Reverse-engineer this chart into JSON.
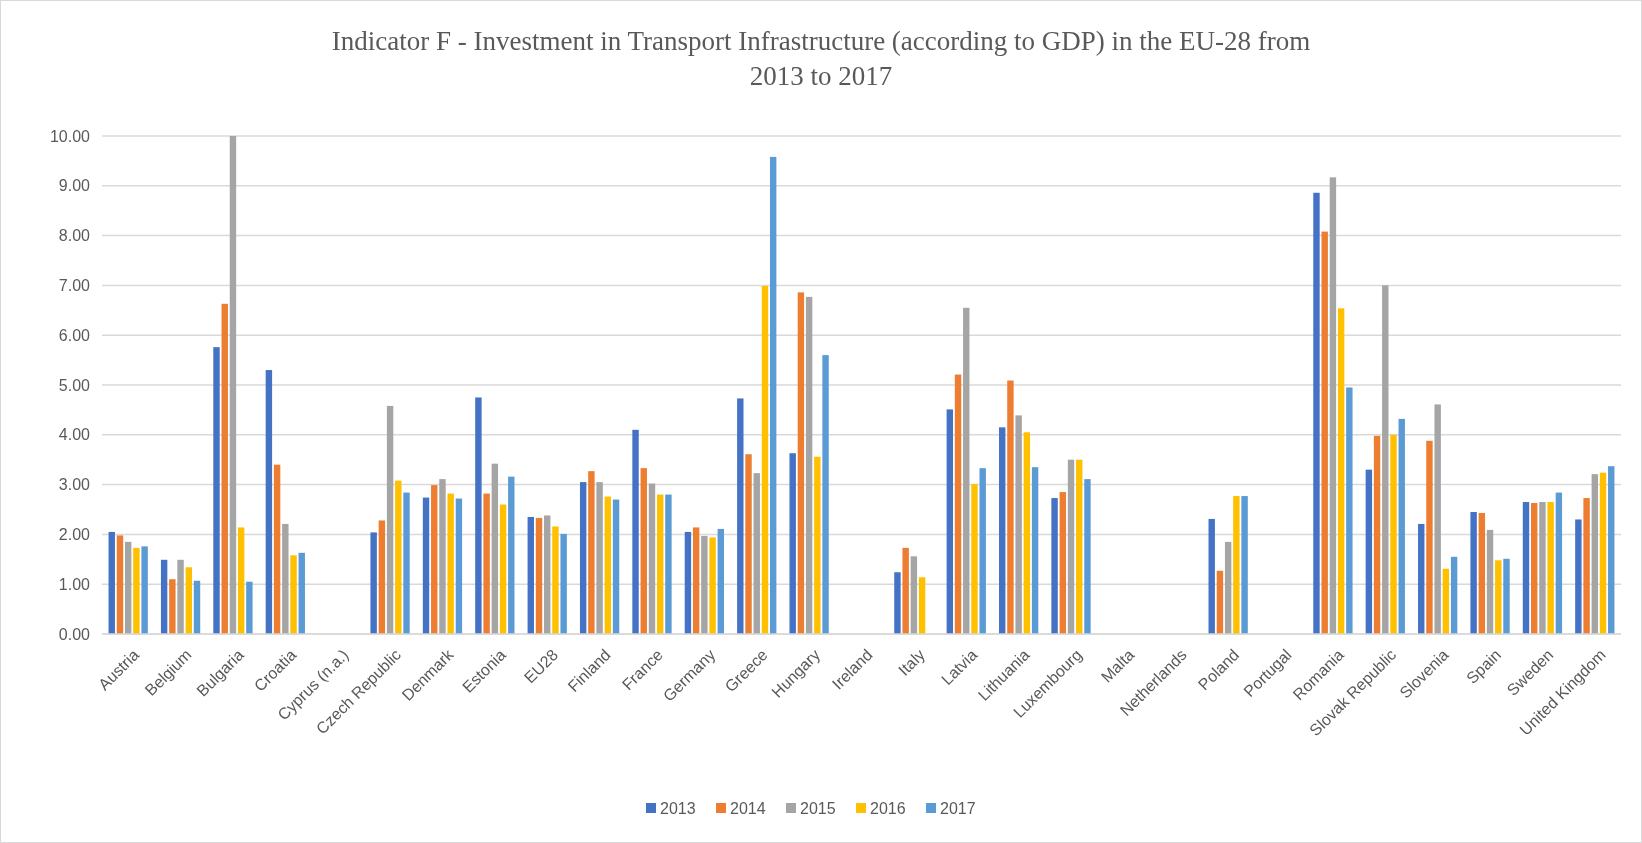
{
  "chart_data": {
    "type": "bar",
    "title": "Indicator F - Investment in Transport Infrastructure (according to GDP) in the EU-28 from 2013 to 2017",
    "categories": [
      "Austria",
      "Belgium",
      "Bulgaria",
      "Croatia",
      "Cyprus (n.a.)",
      "Czech Republic",
      "Denmark",
      "Estonia",
      "EU28",
      "Finland",
      "France",
      "Germany",
      "Greece",
      "Hungary",
      "Ireland",
      "Italy",
      "Latvia",
      "Lithuania",
      "Luxembourg",
      "Malta",
      "Netherlands",
      "Poland",
      "Portugal",
      "Romania",
      "Slovak Republic",
      "Slovenia",
      "Spain",
      "Sweden",
      "United Kingdom"
    ],
    "series": [
      {
        "name": "2013",
        "color": "#4472c4",
        "values": [
          2.05,
          1.49,
          5.76,
          5.3,
          null,
          2.04,
          2.74,
          4.75,
          2.35,
          3.05,
          4.1,
          2.05,
          4.73,
          3.63,
          null,
          1.24,
          4.51,
          4.15,
          2.73,
          null,
          null,
          2.31,
          null,
          8.86,
          3.3,
          2.21,
          2.45,
          2.65,
          2.3
        ]
      },
      {
        "name": "2014",
        "color": "#ed7d31",
        "values": [
          1.98,
          1.1,
          6.63,
          3.4,
          null,
          2.28,
          2.99,
          2.82,
          2.33,
          3.27,
          3.33,
          2.14,
          3.61,
          6.86,
          null,
          1.73,
          5.21,
          5.09,
          2.85,
          null,
          null,
          1.27,
          null,
          8.08,
          3.98,
          3.88,
          2.43,
          2.63,
          2.73
        ]
      },
      {
        "name": "2015",
        "color": "#a5a5a5",
        "values": [
          1.85,
          1.49,
          10.0,
          2.21,
          null,
          4.58,
          3.11,
          3.42,
          2.38,
          3.05,
          3.02,
          1.97,
          3.23,
          6.77,
          null,
          1.56,
          6.55,
          4.39,
          3.5,
          null,
          null,
          1.85,
          null,
          9.17,
          7.0,
          4.61,
          2.09,
          2.65,
          3.21
        ]
      },
      {
        "name": "2016",
        "color": "#ffc000",
        "values": [
          1.73,
          1.34,
          2.14,
          1.58,
          null,
          3.08,
          2.82,
          2.6,
          2.16,
          2.76,
          2.8,
          1.94,
          6.99,
          3.56,
          null,
          1.14,
          3.01,
          4.05,
          3.5,
          null,
          null,
          2.77,
          null,
          6.54,
          4.0,
          1.31,
          1.48,
          2.65,
          3.24
        ]
      },
      {
        "name": "2017",
        "color": "#5b9bd5",
        "values": [
          1.76,
          1.07,
          1.05,
          1.63,
          null,
          2.84,
          2.72,
          3.16,
          2.01,
          2.7,
          2.8,
          2.11,
          9.58,
          5.6,
          null,
          null,
          3.33,
          3.35,
          3.11,
          null,
          null,
          2.77,
          null,
          4.95,
          4.32,
          1.55,
          1.51,
          2.84,
          3.37
        ]
      }
    ],
    "ylim": [
      0,
      10
    ],
    "yticks": [
      {
        "value": 0,
        "label": "0.00"
      },
      {
        "value": 1,
        "label": "1.00"
      },
      {
        "value": 2,
        "label": "2.00"
      },
      {
        "value": 3,
        "label": "3.00"
      },
      {
        "value": 4,
        "label": "4.00"
      },
      {
        "value": 5,
        "label": "5.00"
      },
      {
        "value": 6,
        "label": "6.00"
      },
      {
        "value": 7,
        "label": "7.00"
      },
      {
        "value": 8,
        "label": "8.00"
      },
      {
        "value": 9,
        "label": "9.00"
      },
      {
        "value": 10,
        "label": "10.00"
      }
    ],
    "grid": "y",
    "legend": "bottom"
  }
}
